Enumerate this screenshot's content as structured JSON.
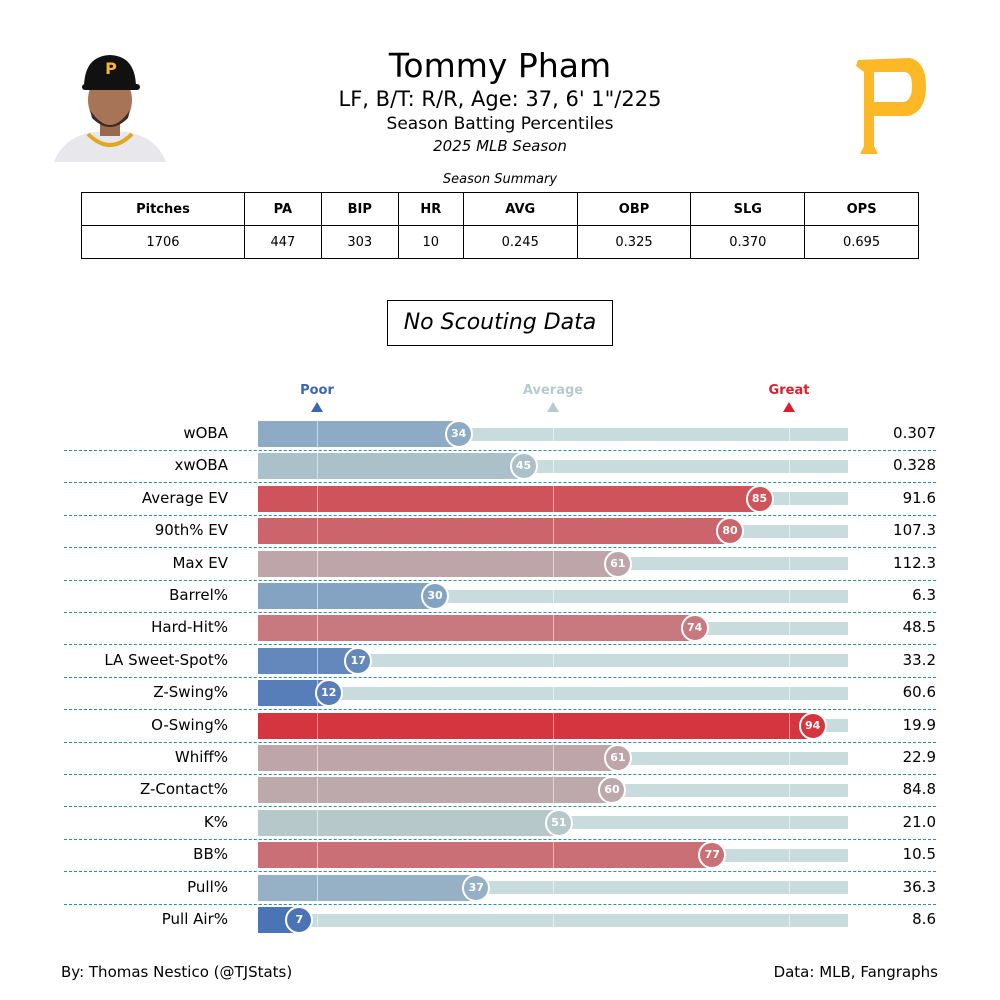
{
  "header": {
    "name": "Tommy Pham",
    "info": "LF, B/T: R/R, Age: 37, 6' 1\"/225",
    "subtitle": "Season Batting Percentiles",
    "season": "2025 MLB Season",
    "logo_color": "#FDB827",
    "logo_letter": "P"
  },
  "summary": {
    "caption": "Season Summary",
    "headers": [
      "Pitches",
      "PA",
      "BIP",
      "HR",
      "AVG",
      "OBP",
      "SLG",
      "OPS"
    ],
    "values": [
      "1706",
      "447",
      "303",
      "10",
      "0.245",
      "0.325",
      "0.370",
      "0.695"
    ]
  },
  "scouting": "No Scouting Data",
  "markers": [
    {
      "label": "Poor",
      "pct": 10,
      "color": "#3a66b3"
    },
    {
      "label": "Average",
      "pct": 50,
      "color": "#b6cbcd"
    },
    {
      "label": "Great",
      "pct": 90,
      "color": "#d9202a"
    }
  ],
  "chart_data": {
    "type": "bar",
    "orientation": "horizontal",
    "xlim": [
      0,
      100
    ],
    "categories": [
      "wOBA",
      "xwOBA",
      "Average EV",
      "90th% EV",
      "Max EV",
      "Barrel%",
      "Hard-Hit%",
      "LA Sweet-Spot%",
      "Z-Swing%",
      "O-Swing%",
      "Whiff%",
      "Z-Contact%",
      "K%",
      "BB%",
      "Pull%",
      "Pull Air%"
    ],
    "percentiles": [
      34,
      45,
      85,
      80,
      61,
      30,
      74,
      17,
      12,
      94,
      61,
      60,
      51,
      77,
      37,
      7
    ],
    "stat_values": [
      "0.307",
      "0.328",
      "91.6",
      "107.3",
      "112.3",
      "6.3",
      "48.5",
      "33.2",
      "60.6",
      "19.9",
      "22.9",
      "84.8",
      "21.0",
      "10.5",
      "36.3",
      "8.6"
    ]
  },
  "footer": {
    "left": "By: Thomas Nestico (@TJStats)",
    "right": "Data: MLB, Fangraphs"
  }
}
